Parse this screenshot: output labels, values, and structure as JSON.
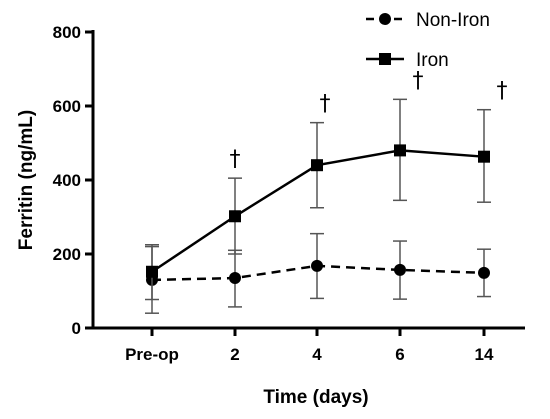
{
  "chart_data": {
    "type": "line",
    "categories": [
      "Pre-op",
      "2",
      "4",
      "6",
      "14"
    ],
    "xlabel": "Time (days)",
    "ylabel": "Ferritin (ng/mL)",
    "ylim": [
      0,
      800
    ],
    "yticks": [
      0,
      200,
      400,
      600,
      800
    ],
    "grid": false,
    "legend_position": "top-right",
    "significance_mark": "†",
    "significant_categories": [
      "2",
      "4",
      "6",
      "14"
    ],
    "series": [
      {
        "name": "Non-Iron",
        "line_style": "dashed",
        "marker": "circle",
        "values": [
          130,
          135,
          168,
          157,
          149
        ],
        "error_upper": [
          225,
          210,
          255,
          235,
          213
        ],
        "error_lower": [
          40,
          57,
          80,
          78,
          85
        ]
      },
      {
        "name": "Iron",
        "line_style": "solid",
        "marker": "square",
        "values": [
          152,
          302,
          440,
          480,
          463
        ],
        "error_upper": [
          220,
          405,
          555,
          618,
          590
        ],
        "error_lower": [
          77,
          200,
          325,
          345,
          340
        ]
      }
    ]
  }
}
